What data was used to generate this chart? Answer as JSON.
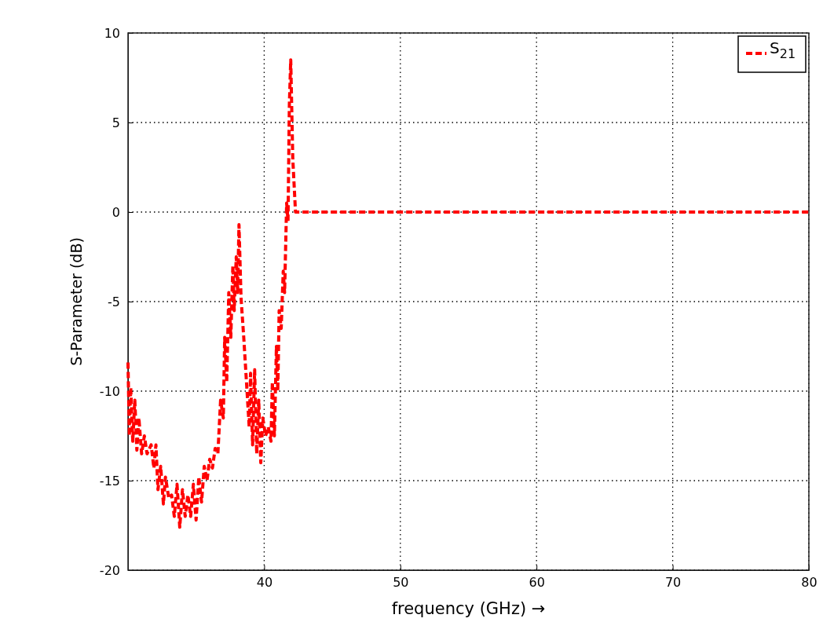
{
  "chart_data": {
    "type": "line",
    "xlabel": "frequency (GHz) →",
    "ylabel": "S-Parameter (dB)",
    "xlim": [
      30,
      80
    ],
    "xticks": [
      40,
      50,
      60,
      70,
      80
    ],
    "ylim": [
      -20,
      10
    ],
    "yticks": [
      -20,
      -15,
      -10,
      -5,
      0,
      5,
      10
    ],
    "grid": true,
    "legend": "top right",
    "line_style": "dashed",
    "marker": "none",
    "series": [
      {
        "name": "S$_{21}$",
        "color": "#ff0000",
        "x": [
          30.0,
          30.1,
          30.2,
          30.35,
          30.5,
          30.65,
          30.8,
          31.0,
          31.2,
          31.4,
          31.7,
          31.9,
          32.05,
          32.2,
          32.4,
          32.6,
          32.75,
          33.0,
          33.2,
          33.4,
          33.6,
          33.8,
          34.0,
          34.2,
          34.4,
          34.6,
          34.8,
          35.0,
          35.2,
          35.4,
          35.6,
          35.8,
          36.0,
          36.2,
          36.4,
          36.6,
          36.8,
          37.0,
          37.1,
          37.25,
          37.4,
          37.55,
          37.7,
          37.8,
          37.95,
          38.05,
          38.15,
          38.3,
          38.5,
          38.7,
          38.9,
          39.0,
          39.15,
          39.3,
          39.45,
          39.6,
          39.75,
          39.9,
          40.1,
          40.3,
          40.5,
          40.6,
          40.75,
          40.9,
          41.0,
          41.1,
          41.25,
          41.4,
          41.5,
          41.65,
          41.75,
          41.85,
          41.95,
          42.1,
          42.3,
          42.5,
          50,
          60,
          70,
          80
        ],
        "values": [
          -8.4,
          -12.5,
          -9.8,
          -12.8,
          -10.5,
          -13.3,
          -11.5,
          -13.5,
          -12.5,
          -13.5,
          -13.0,
          -14.3,
          -13.0,
          -15.5,
          -14.2,
          -16.3,
          -14.8,
          -16.0,
          -15.8,
          -17.0,
          -15.2,
          -17.6,
          -15.5,
          -17.0,
          -15.8,
          -17.0,
          -15.2,
          -17.2,
          -14.8,
          -16.2,
          -14.2,
          -15.0,
          -13.8,
          -14.3,
          -13.2,
          -13.5,
          -10.5,
          -11.5,
          -7.0,
          -9.5,
          -4.5,
          -7.0,
          -3.0,
          -5.5,
          -2.5,
          -4.5,
          -0.7,
          -4.8,
          -7.0,
          -9.5,
          -12.0,
          -9.0,
          -13.0,
          -8.8,
          -13.5,
          -10.5,
          -14.0,
          -11.5,
          -12.5,
          -12.0,
          -12.8,
          -9.5,
          -12.5,
          -7.5,
          -10.0,
          -5.5,
          -6.5,
          -3.3,
          -4.5,
          0.5,
          -0.5,
          6.0,
          8.5,
          3.0,
          0,
          0,
          0,
          0,
          0,
          0
        ]
      }
    ]
  }
}
